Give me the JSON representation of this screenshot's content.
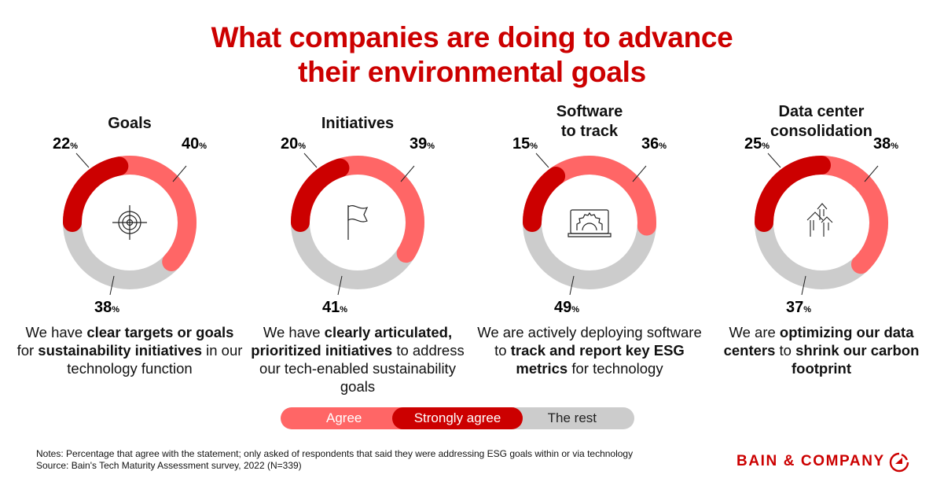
{
  "title_lines": [
    "What companies are doing to advance",
    "their environmental goals"
  ],
  "colors": {
    "strongly_agree": "#cc0000",
    "agree": "#ff6666",
    "rest": "#cccccc",
    "accent": "#cc0000"
  },
  "chart_data": {
    "type": "pie",
    "variant": "donut",
    "charts": [
      {
        "title": [
          "Goals"
        ],
        "icon": "target-icon",
        "strongly_agree": 22,
        "agree": 40,
        "rest": 38,
        "description": [
          {
            "t": "We have "
          },
          {
            "t": "clear targets or goals",
            "b": true
          },
          {
            "t": " for "
          },
          {
            "t": "sustainability initiatives",
            "b": true
          },
          {
            "t": " in our technology function"
          }
        ]
      },
      {
        "title": [
          "Initiatives"
        ],
        "icon": "flag-icon",
        "strongly_agree": 20,
        "agree": 39,
        "rest": 41,
        "description": [
          {
            "t": "We have "
          },
          {
            "t": "clearly articulated, prioritized initiatives",
            "b": true
          },
          {
            "t": " to address our tech-enabled sustainability goals"
          }
        ]
      },
      {
        "title": [
          "Software",
          "to track"
        ],
        "icon": "laptop-gear-icon",
        "strongly_agree": 15,
        "agree": 36,
        "rest": 49,
        "description": [
          {
            "t": "We are actively deploying software to "
          },
          {
            "t": "track and report key ESG metrics",
            "b": true
          },
          {
            "t": " for technology"
          }
        ]
      },
      {
        "title": [
          "Data center",
          "consolidation"
        ],
        "icon": "arrows-up-icon",
        "strongly_agree": 25,
        "agree": 38,
        "rest": 37,
        "description": [
          {
            "t": "We are "
          },
          {
            "t": "optimizing our data centers",
            "b": true
          },
          {
            "t": " to "
          },
          {
            "t": "shrink our carbon footprint",
            "b": true
          }
        ]
      }
    ],
    "unit": "%",
    "legend": {
      "placement": "bottom",
      "entries": [
        "Agree",
        "Strongly agree",
        "The rest"
      ]
    }
  },
  "notes": "Notes: Percentage that agree with the statement; only asked of respondents that said they were addressing ESG goals within or via technology",
  "source": "Source: Bain's Tech Maturity Assessment survey, 2022 (N=339)",
  "logo": "BAIN & COMPANY"
}
